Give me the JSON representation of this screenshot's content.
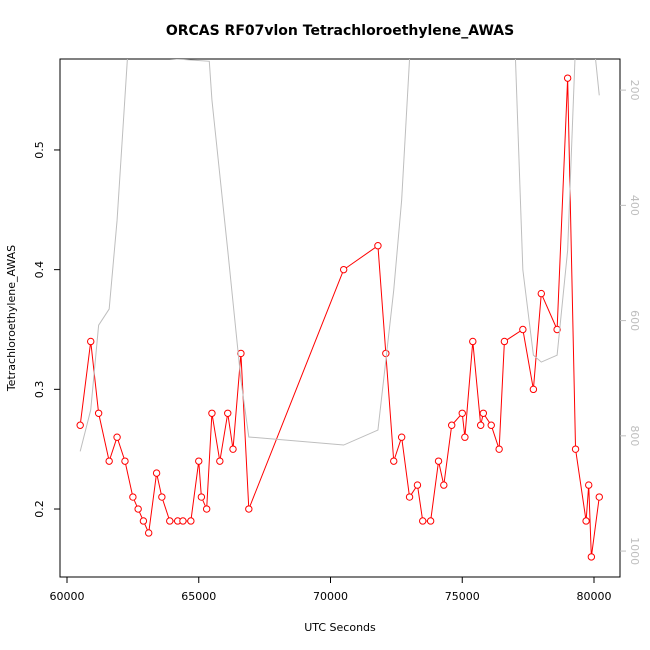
{
  "chart_data": {
    "type": "line",
    "title": "ORCAS RF07vlon Tetrachloroethylene_AWAS",
    "x_label": "UTC Seconds",
    "y_label": "Tetrachloroethylene_AWAS",
    "x": [
      60500,
      60900,
      61200,
      61600,
      61900,
      62200,
      62500,
      62700,
      62900,
      63100,
      63400,
      63600,
      63900,
      64200,
      64400,
      64700,
      65000,
      65100,
      65300,
      65500,
      65800,
      66100,
      66300,
      66600,
      66900,
      70500,
      71800,
      72100,
      72400,
      72700,
      73000,
      73300,
      73500,
      73800,
      74100,
      74300,
      74600,
      75000,
      75100,
      75400,
      75700,
      75800,
      76100,
      76400,
      76600,
      77300,
      77700,
      78000,
      78600,
      79000,
      79300,
      79700,
      79800,
      79900,
      80200
    ],
    "xlim": [
      59734,
      80987
    ],
    "ylim": [
      0.1432,
      0.576
    ],
    "y2lim": [
      1045,
      146
    ],
    "xticks": [
      60000,
      65000,
      70000,
      75000,
      80000
    ],
    "yticks": [
      0.2,
      0.3,
      0.4,
      0.5
    ],
    "y2ticks": [
      200,
      400,
      600,
      800,
      1000
    ],
    "series": [
      {
        "color": "#ff0000",
        "marker": "circle",
        "values": [
          0.27,
          0.34,
          0.28,
          0.24,
          0.26,
          0.24,
          0.21,
          0.2,
          0.19,
          0.18,
          0.23,
          0.21,
          0.19,
          0.19,
          0.19,
          0.19,
          0.24,
          0.21,
          0.2,
          0.28,
          0.24,
          0.28,
          0.25,
          0.33,
          0.2,
          0.4,
          0.42,
          0.33,
          0.24,
          0.26,
          0.21,
          0.22,
          0.19,
          0.19,
          0.24,
          0.22,
          0.27,
          0.28,
          0.26,
          0.34,
          0.27,
          0.28,
          0.27,
          0.25,
          0.34,
          0.35,
          0.3,
          0.38,
          0.35,
          0.56,
          0.25,
          0.19,
          0.22,
          0.16,
          0.21
        ]
      },
      {
        "color": "#bebebe",
        "axis": "y2",
        "x": [
          60500,
          60900,
          61200,
          61600,
          61900,
          62300,
          65400,
          65500,
          66100,
          66600,
          66900,
          70500,
          71800,
          72100,
          72400,
          72700,
          73000,
          73100,
          77000,
          77300,
          77700,
          78000,
          78600,
          79000,
          79300,
          80000,
          80200
        ],
        "values": [
          827,
          755,
          608,
          580,
          426,
          140,
          150,
          217,
          478,
          703,
          802,
          816,
          790,
          669,
          547,
          391,
          146,
          120,
          120,
          512,
          660,
          672,
          660,
          478,
          120,
          120,
          209
        ]
      }
    ]
  }
}
